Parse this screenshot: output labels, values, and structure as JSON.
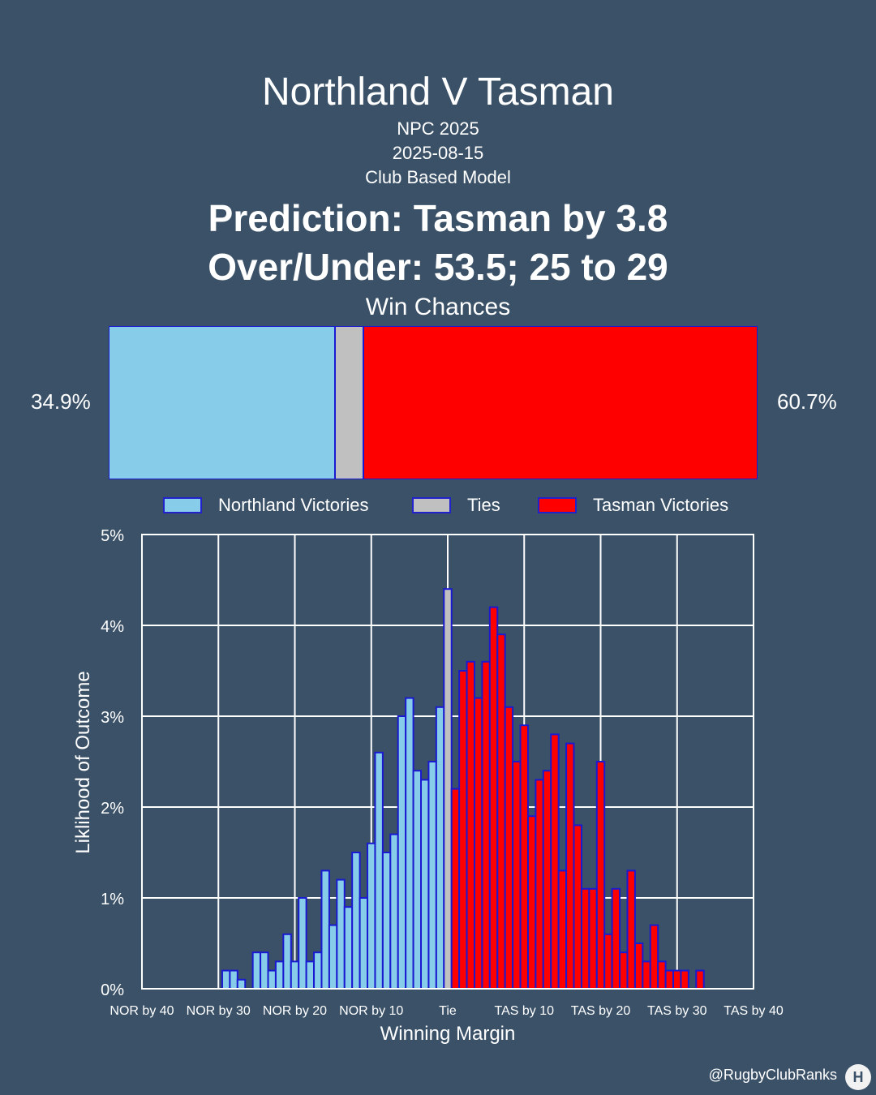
{
  "header": {
    "title": "Northland V Tasman",
    "competition": "NPC 2025",
    "date": "2025-08-15",
    "model": "Club Based Model",
    "prediction": "Prediction: Tasman by 3.8",
    "over_under": "Over/Under: 53.5; 25 to 29",
    "win_chances_label": "Win Chances"
  },
  "win_chances": {
    "northland_pct": 34.9,
    "tie_pct": 4.4,
    "tasman_pct": 60.7,
    "northland_label": "34.9%",
    "tasman_label": "60.7%"
  },
  "legend": {
    "northland": "Northland Victories",
    "ties": "Ties",
    "tasman": "Tasman Victories"
  },
  "colors": {
    "background": "#3a5168",
    "northland": "#87cdea",
    "ties": "#c0c0c0",
    "tasman": "#ff0000",
    "bar_edge": "#1a1ad0"
  },
  "chart_data": {
    "type": "bar",
    "xlabel": "Winning Margin",
    "ylabel": "Liklihood of Outcome",
    "ylim": [
      0,
      5
    ],
    "xlim": [
      -40,
      40
    ],
    "grid": true,
    "y_ticks": [
      "0%",
      "1%",
      "2%",
      "3%",
      "4%",
      "5%"
    ],
    "x_ticks": [
      {
        "value": -40,
        "label": "NOR by 40"
      },
      {
        "value": -30,
        "label": "NOR by 30"
      },
      {
        "value": -20,
        "label": "NOR by 20"
      },
      {
        "value": -10,
        "label": "NOR by 10"
      },
      {
        "value": 0,
        "label": "Tie"
      },
      {
        "value": 10,
        "label": "TAS by 10"
      },
      {
        "value": 20,
        "label": "TAS by 20"
      },
      {
        "value": 30,
        "label": "TAS by 30"
      },
      {
        "value": 40,
        "label": "TAS by 40"
      }
    ],
    "series": [
      {
        "name": "Northland Victories",
        "color": "#87cdea",
        "x": [
          -29,
          -28,
          -27,
          -26,
          -25,
          -24,
          -23,
          -22,
          -21,
          -20,
          -19,
          -18,
          -17,
          -16,
          -15,
          -14,
          -13,
          -12,
          -11,
          -10,
          -9,
          -8,
          -7,
          -6,
          -5,
          -4,
          -3,
          -2,
          -1
        ],
        "values": [
          0.2,
          0.2,
          0.1,
          0,
          0.4,
          0.4,
          0.2,
          0.3,
          0.6,
          0.3,
          1.0,
          0.3,
          0.4,
          1.3,
          0.7,
          1.2,
          0.9,
          1.5,
          1.0,
          1.6,
          2.6,
          1.5,
          1.7,
          3.0,
          3.2,
          2.4,
          2.3,
          2.5,
          3.1
        ]
      },
      {
        "name": "Ties",
        "color": "#c0c0c0",
        "x": [
          0
        ],
        "values": [
          4.4
        ]
      },
      {
        "name": "Tasman Victories",
        "color": "#ff0000",
        "x": [
          1,
          2,
          3,
          4,
          5,
          6,
          7,
          8,
          9,
          10,
          11,
          12,
          13,
          14,
          15,
          16,
          17,
          18,
          19,
          20,
          21,
          22,
          23,
          24,
          25,
          26,
          27,
          28,
          29,
          30,
          31,
          32,
          33,
          34
        ],
        "values": [
          2.2,
          3.5,
          3.6,
          3.2,
          3.6,
          4.2,
          3.9,
          3.1,
          2.5,
          2.9,
          1.9,
          2.3,
          2.4,
          2.8,
          1.3,
          2.7,
          1.8,
          1.1,
          1.1,
          2.5,
          0.6,
          1.1,
          0.4,
          1.3,
          0.5,
          0.3,
          0.7,
          0.3,
          0.2,
          0.2,
          0.2,
          0,
          0.2,
          0
        ]
      }
    ]
  },
  "footer": {
    "handle": "@RugbyClubRanks",
    "logo_text": "H"
  }
}
